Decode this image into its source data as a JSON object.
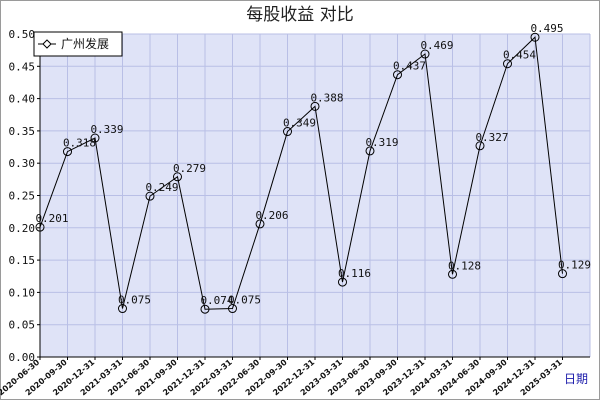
{
  "chart_data": {
    "type": "line",
    "title": "每股收益  对比",
    "xlabel": "日期",
    "ylabel": "",
    "ylim": [
      0,
      0.5
    ],
    "yticks": [
      "0.00",
      "0.05",
      "0.10",
      "0.15",
      "0.20",
      "0.25",
      "0.30",
      "0.35",
      "0.40",
      "0.45",
      "0.50"
    ],
    "grid": true,
    "legend_position": "top-left",
    "categories": [
      "2020-06-30",
      "2020-09-30",
      "2020-12-31",
      "2021-03-31",
      "2021-06-30",
      "2021-09-30",
      "2021-12-31",
      "2022-03-31",
      "2022-06-30",
      "2022-09-30",
      "2022-12-31",
      "2023-03-31",
      "2023-06-30",
      "2023-09-30",
      "2023-12-31",
      "2024-03-31",
      "2024-06-30",
      "2024-09-30",
      "2024-12-31",
      "2025-03-31"
    ],
    "series": [
      {
        "name": "广州发展",
        "values": [
          0.201,
          0.318,
          0.339,
          0.075,
          0.249,
          0.279,
          0.074,
          0.075,
          0.206,
          0.349,
          0.388,
          0.116,
          0.319,
          0.437,
          0.469,
          0.128,
          0.327,
          0.454,
          0.495,
          0.129
        ],
        "labels": [
          "0.201",
          "0.318",
          "0.339",
          "0.075",
          "0.249",
          "0.279",
          "0.074",
          "0.075",
          "0.206",
          "0.349",
          "0.388",
          "0.116",
          "0.319",
          "0.437",
          "0.469",
          "0.128",
          "0.327",
          "0.454",
          "0.495",
          "0.129"
        ]
      }
    ],
    "colors": {
      "plot_background": "#dfe3f7",
      "grid": "#b9bfe6",
      "line": "#000000",
      "axis": "#000000"
    }
  }
}
